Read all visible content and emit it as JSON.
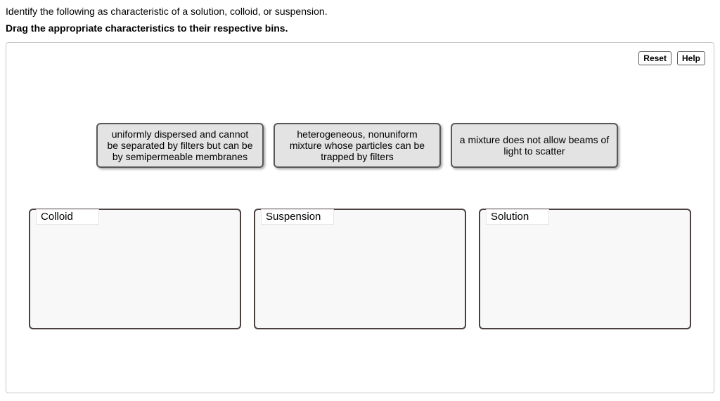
{
  "instruction_line1": "Identify the following as characteristic of a solution, colloid, or suspension.",
  "instruction_line2": "Drag the appropriate characteristics to their respective bins.",
  "buttons": {
    "reset": "Reset",
    "help": "Help"
  },
  "cards": {
    "card1": "uniformly dispersed and cannot be separated by filters but can be by semipermeable membranes",
    "card2": "heterogeneous, nonuniform mixture whose particles can be trapped by filters",
    "card3": "a mixture does not allow beams of light to scatter"
  },
  "bins": {
    "bin1": "Colloid",
    "bin2": "Suspension",
    "bin3": "Solution"
  },
  "colors": {
    "card_bg": "#e3e3e3",
    "card_border": "#595959",
    "bin_border": "#4a4040",
    "bin_bg": "#f8f8f8",
    "area_border": "#c8c8c8"
  }
}
